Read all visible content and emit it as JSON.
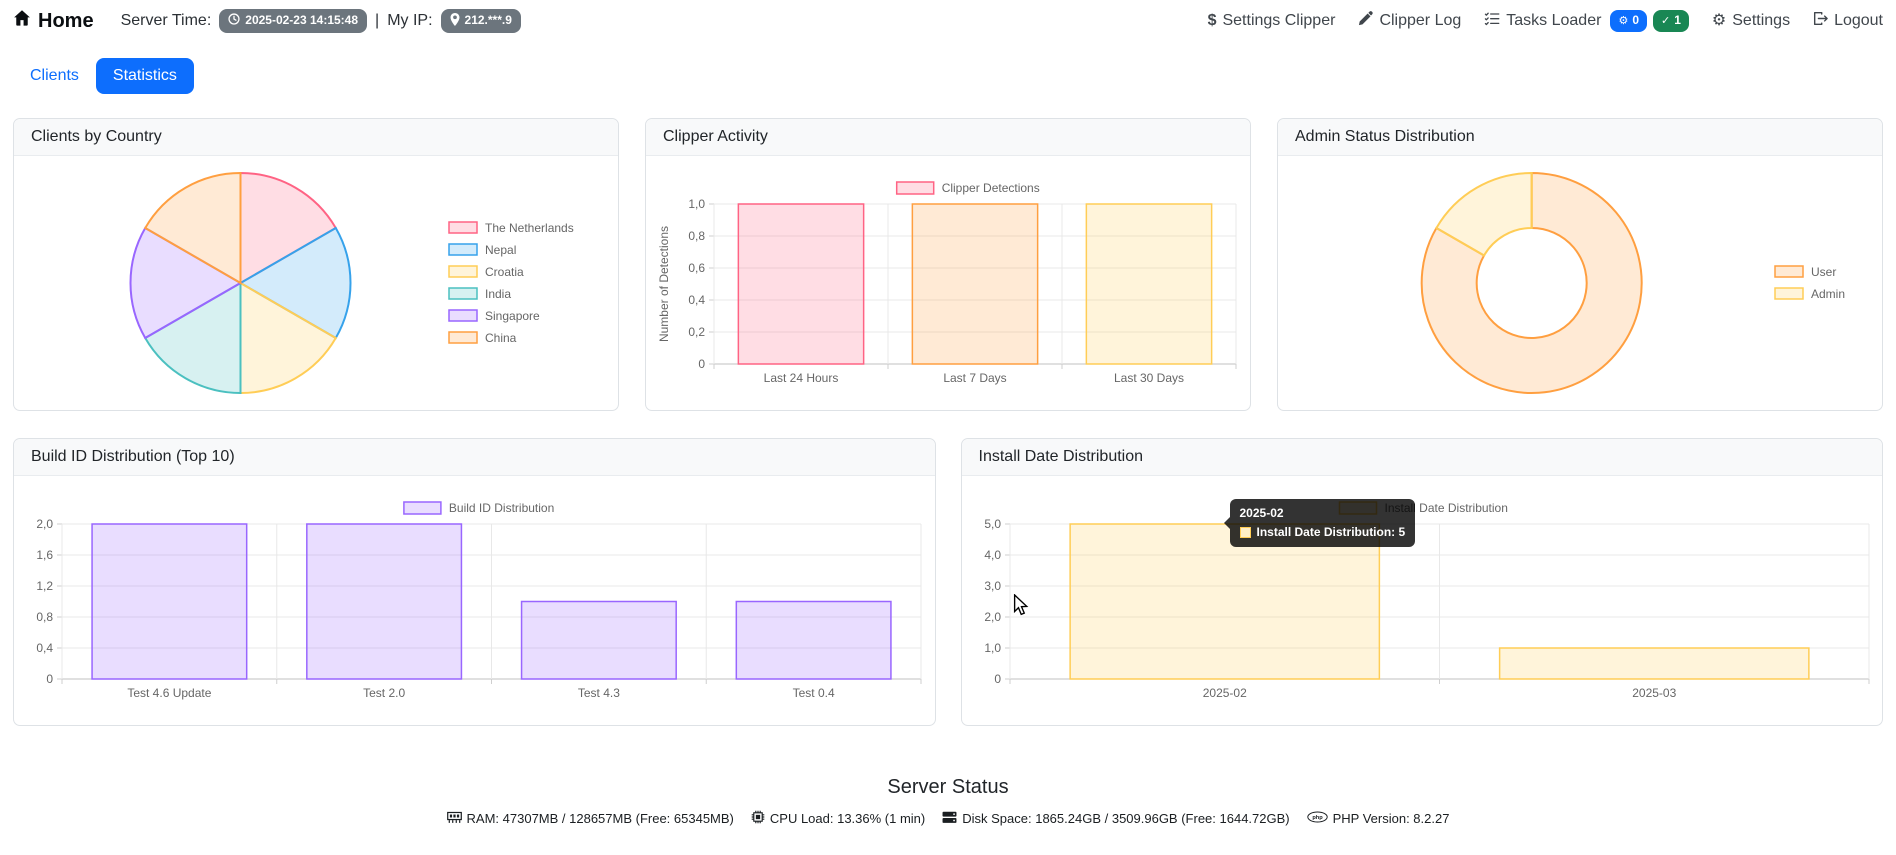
{
  "theme": {
    "accent": "#0d6efd",
    "success": "#198754",
    "secondary_badge": "#6c757d"
  },
  "navbar": {
    "brand": "Home",
    "server_time_label": "Server Time:",
    "server_time_value": "2025-02-23 14:15:48",
    "divider": "|",
    "my_ip_label": "My IP:",
    "my_ip_value": "212.***.9",
    "links": [
      {
        "label": "Settings Clipper"
      },
      {
        "label": "Clipper Log"
      },
      {
        "label": "Tasks Loader"
      },
      {
        "label": "Settings"
      },
      {
        "label": "Logout"
      }
    ],
    "tasks_badges": [
      {
        "value": "0",
        "color": "#0d6efd",
        "icon": "gear"
      },
      {
        "value": "1",
        "color": "#198754",
        "icon": "check"
      }
    ]
  },
  "tabs": [
    {
      "label": "Clients",
      "active": false
    },
    {
      "label": "Statistics",
      "active": true
    }
  ],
  "cards": {
    "clients_by_country": "Clients by Country",
    "clipper_activity": "Clipper Activity",
    "admin_status": "Admin Status Distribution",
    "build_id": "Build ID Distribution (Top 10)",
    "install_date": "Install Date Distribution"
  },
  "chart_data": [
    {
      "id": "clients_by_country",
      "type": "pie",
      "title": "Clients by Country",
      "labels": [
        "The Netherlands",
        "Nepal",
        "Croatia",
        "India",
        "Singapore",
        "China"
      ],
      "values": [
        1,
        1,
        1,
        1,
        1,
        1
      ],
      "colors": [
        "#FF6384",
        "#36A2EB",
        "#FFCD56",
        "#4BC0C0",
        "#9966FF",
        "#FF9F40"
      ],
      "fills": [
        "rgba(255,99,132,0.22)",
        "rgba(54,162,235,0.22)",
        "rgba(255,205,86,0.22)",
        "rgba(75,192,192,0.22)",
        "rgba(153,102,255,0.22)",
        "rgba(255,159,64,0.22)"
      ],
      "legend_position": "right"
    },
    {
      "id": "clipper_activity",
      "type": "bar",
      "title": "Clipper Activity",
      "legend_label": "Clipper Detections",
      "legend_color": "#FF6384",
      "legend_fill": "rgba(255,99,132,0.22)",
      "categories": [
        "Last 24 Hours",
        "Last 7 Days",
        "Last 30 Days"
      ],
      "values": [
        1,
        1,
        1
      ],
      "bar_colors": [
        "#FF6384",
        "#FF9F40",
        "#FFCD56"
      ],
      "bar_fills": [
        "rgba(255,99,132,0.22)",
        "rgba(255,159,64,0.22)",
        "rgba(255,205,86,0.22)"
      ],
      "xlabel": "",
      "ylabel": "Number of Detections",
      "ylim": [
        0,
        1
      ],
      "grid": true,
      "legend_position": "top-center",
      "yticks": [
        {
          "v": 1,
          "label": "1,0"
        },
        {
          "v": 0.8,
          "label": "0,8"
        },
        {
          "v": 0.6,
          "label": "0,6"
        },
        {
          "v": 0.4,
          "label": "0,4"
        },
        {
          "v": 0.2,
          "label": "0,2"
        },
        {
          "v": 0,
          "label": "0"
        }
      ]
    },
    {
      "id": "admin_status",
      "type": "doughnut",
      "title": "Admin Status Distribution",
      "labels": [
        "User",
        "Admin"
      ],
      "values": [
        5,
        1
      ],
      "colors": [
        "#FF9F40",
        "#FFCD56"
      ],
      "fills": [
        "rgba(255,159,64,0.22)",
        "rgba(255,205,86,0.22)"
      ],
      "legend_position": "right"
    },
    {
      "id": "build_id",
      "type": "bar",
      "title": "Build ID Distribution (Top 10)",
      "legend_label": "Build ID Distribution",
      "legend_color": "#9966FF",
      "legend_fill": "rgba(153,102,255,0.22)",
      "categories": [
        "Test 4.6 Update",
        "Test 2.0",
        "Test 4.3",
        "Test 0.4"
      ],
      "values": [
        2,
        2,
        1,
        1
      ],
      "bar_colors": [
        "#9966FF",
        "#9966FF",
        "#9966FF",
        "#9966FF"
      ],
      "bar_fills": [
        "rgba(153,102,255,0.22)",
        "rgba(153,102,255,0.22)",
        "rgba(153,102,255,0.22)",
        "rgba(153,102,255,0.22)"
      ],
      "xlabel": "",
      "ylabel": "",
      "ylim": [
        0,
        2
      ],
      "grid": true,
      "legend_position": "top-center",
      "yticks": [
        {
          "v": 2,
          "label": "2,0"
        },
        {
          "v": 1.6,
          "label": "1,6"
        },
        {
          "v": 1.2,
          "label": "1,2"
        },
        {
          "v": 0.8,
          "label": "0,8"
        },
        {
          "v": 0.4,
          "label": "0,4"
        },
        {
          "v": 0,
          "label": "0"
        }
      ]
    },
    {
      "id": "install_date",
      "type": "bar",
      "title": "Install Date Distribution",
      "legend_label": "Install Date Distribution",
      "legend_color": "#FFCD56",
      "legend_fill": "rgba(255,205,86,0.22)",
      "categories": [
        "2025-02",
        "2025-03"
      ],
      "values": [
        5,
        1
      ],
      "bar_colors": [
        "#FFCD56",
        "#FFCD56"
      ],
      "bar_fills": [
        "rgba(255,205,86,0.22)",
        "rgba(255,205,86,0.22)"
      ],
      "xlabel": "",
      "ylabel": "",
      "ylim": [
        0,
        5
      ],
      "grid": true,
      "legend_position": "top-center",
      "yticks": [
        {
          "v": 5,
          "label": "5,0"
        },
        {
          "v": 4,
          "label": "4,0"
        },
        {
          "v": 3,
          "label": "3,0"
        },
        {
          "v": 2,
          "label": "2,0"
        },
        {
          "v": 1,
          "label": "1,0"
        },
        {
          "v": 0,
          "label": "0"
        }
      ]
    }
  ],
  "tooltip": {
    "title": "2025-02",
    "text": "Install Date Distribution: 5",
    "key_fill": "#ffeec6",
    "key_border": "#FFCD56"
  },
  "footer": {
    "title": "Server Status",
    "items": [
      {
        "icon": "memory-icon",
        "label": "RAM: 47307MB / 128657MB (Free: 65345MB)"
      },
      {
        "icon": "cpu-icon",
        "label": "CPU Load: 13.36% (1 min)"
      },
      {
        "icon": "hdd-icon",
        "label": "Disk Space: 1865.24GB / 3509.96GB (Free: 1644.72GB)"
      },
      {
        "icon": "php-icon",
        "label": "PHP Version: 8.2.27"
      }
    ]
  }
}
